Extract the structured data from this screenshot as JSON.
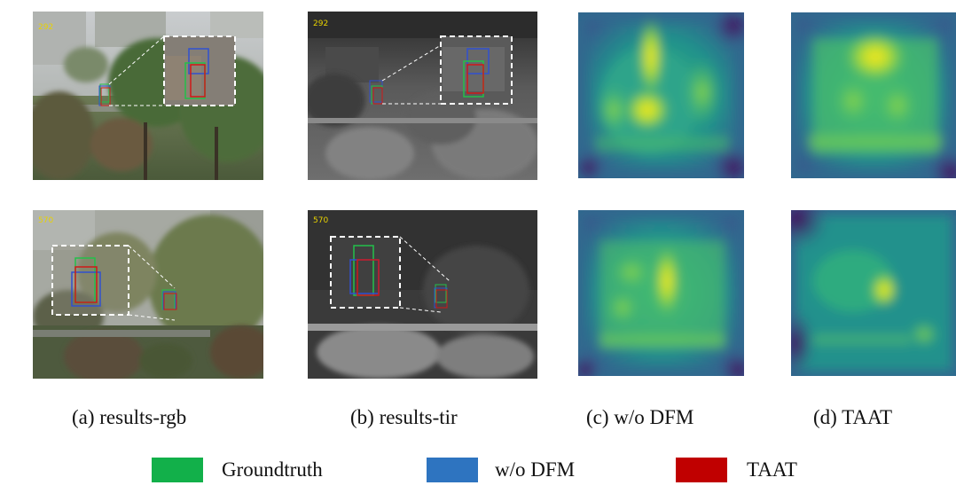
{
  "captions": {
    "a": "(a) results-rgb",
    "b": "(b) results-tir",
    "c": "(c) w/o DFM",
    "d": "(d) TAAT"
  },
  "frame_numbers": {
    "row1": "292",
    "row2": "570"
  },
  "legend": [
    {
      "label": "Groundtruth",
      "color": "#12b04a"
    },
    {
      "label": "w/o DFM",
      "color": "#2e74c0"
    },
    {
      "label": "TAAT",
      "color": "#c00000"
    }
  ],
  "box_colors": {
    "groundtruth": "#22c04a",
    "wo_dfm": "#3050d0",
    "taat": "#d01818"
  }
}
